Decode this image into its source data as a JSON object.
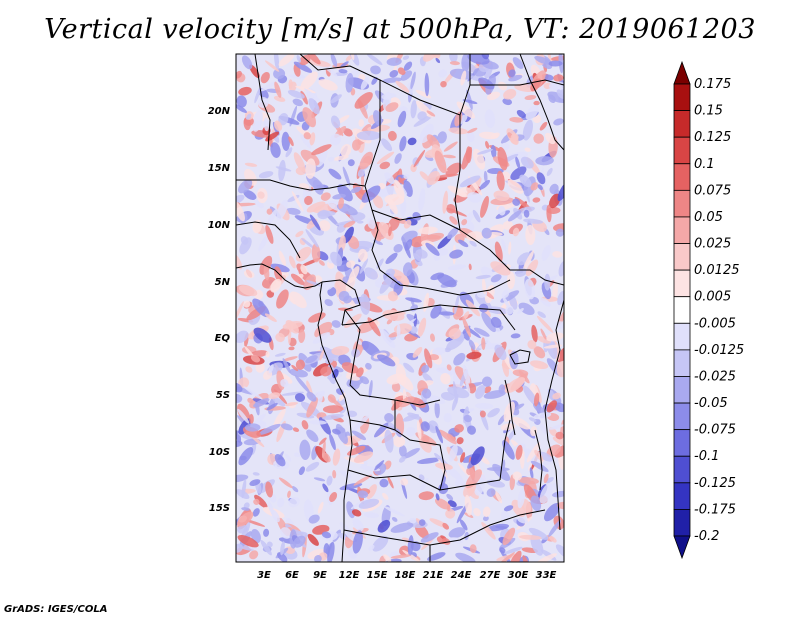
{
  "title": "Vertical velocity [m/s] at 500hPa, VT: 2019061203",
  "credit": "GrADS: IGES/COLA",
  "map": {
    "lon_labels": [
      "3E",
      "6E",
      "9E",
      "12E",
      "15E",
      "18E",
      "21E",
      "24E",
      "27E",
      "30E",
      "33E"
    ],
    "lat_labels": [
      "20N",
      "15N",
      "10N",
      "5N",
      "EQ",
      "5S",
      "10S",
      "15S"
    ]
  },
  "colorbar": {
    "labels": [
      "0.175",
      "0.15",
      "0.125",
      "0.1",
      "0.075",
      "0.05",
      "0.025",
      "0.0125",
      "0.005",
      "-0.005",
      "-0.0125",
      "-0.025",
      "-0.05",
      "-0.075",
      "-0.1",
      "-0.125",
      "-0.175",
      "-0.2"
    ],
    "colors": [
      "#7a0000",
      "#a81010",
      "#c62a2a",
      "#d94545",
      "#e56262",
      "#ee8686",
      "#f5a8a8",
      "#f9c9c9",
      "#fde3e3",
      "#ffffff",
      "#e0e0fb",
      "#c6c6f6",
      "#a9a9f0",
      "#8c8cea",
      "#6d6de0",
      "#4f4fd2",
      "#3434c2",
      "#2020a8",
      "#10108a"
    ]
  }
}
